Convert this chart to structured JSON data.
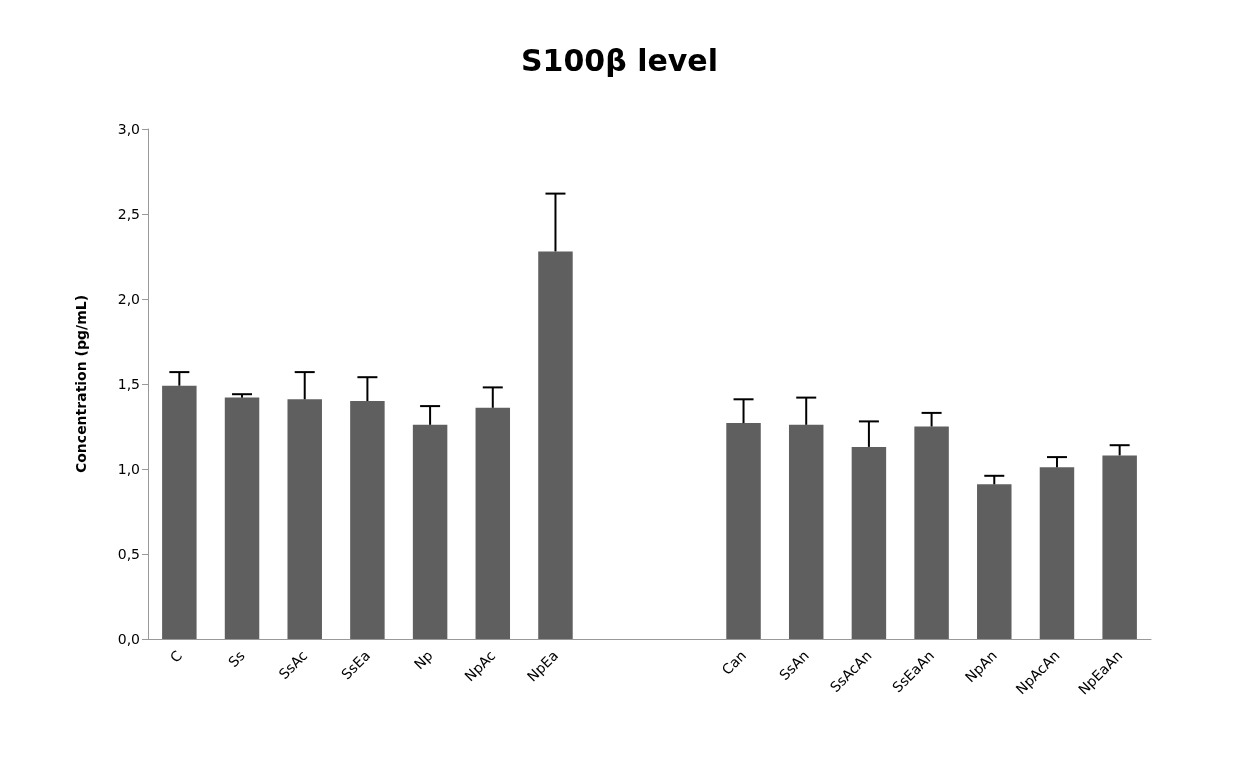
{
  "chart_data": {
    "type": "bar",
    "title": "S100β level",
    "ylabel": "Concentration (pg/mL)",
    "categories": [
      "C",
      "Ss",
      "SsAc",
      "SsEa",
      "Np",
      "NpAc",
      "NpEa",
      null,
      null,
      "Can",
      "SsAn",
      "SsAcAn",
      "SsEaAn",
      "NpAn",
      "NpAcAn",
      "NpEaAn"
    ],
    "values": [
      1.49,
      1.42,
      1.41,
      1.4,
      1.26,
      1.36,
      2.28,
      null,
      null,
      1.27,
      1.26,
      1.13,
      1.25,
      0.91,
      1.01,
      1.08
    ],
    "errors": [
      0.08,
      0.02,
      0.16,
      0.14,
      0.11,
      0.12,
      0.34,
      null,
      null,
      0.14,
      0.16,
      0.15,
      0.08,
      0.05,
      0.06,
      0.06
    ],
    "color": "#5f5f5f",
    "ylim": [
      0,
      3
    ],
    "yticks": [
      {
        "value": 0,
        "label": "0,0"
      },
      {
        "value": 0.5,
        "label": "0,5"
      },
      {
        "value": 1,
        "label": "1,0"
      },
      {
        "value": 1.5,
        "label": "1,5"
      },
      {
        "value": 2,
        "label": "2,0"
      },
      {
        "value": 2.5,
        "label": "2,5"
      },
      {
        "value": 3,
        "label": "3,0"
      }
    ],
    "grid": false
  }
}
